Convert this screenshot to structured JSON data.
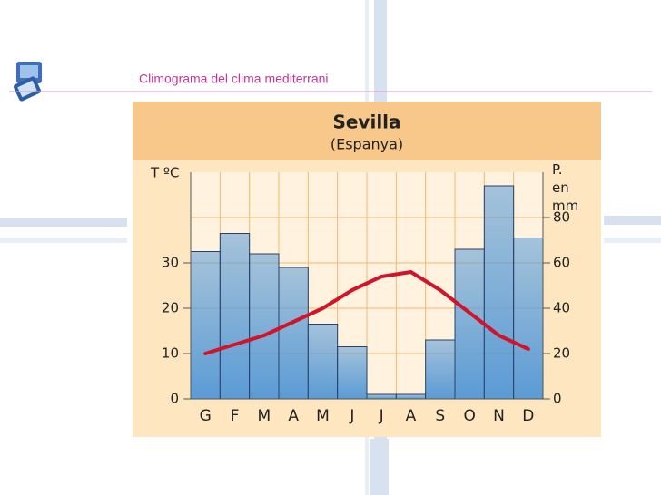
{
  "header": {
    "title": "Climograma del clima mediterrani"
  },
  "chart_data": {
    "type": "combo",
    "title": "Sevilla",
    "subtitle": "(Espanya)",
    "y_label": "T ºC",
    "y2_label": "P. en mm",
    "categories": [
      "G",
      "F",
      "M",
      "A",
      "M",
      "J",
      "J",
      "A",
      "S",
      "O",
      "N",
      "D"
    ],
    "series": [
      {
        "type": "bar",
        "axis": "y2",
        "color": "#5b9bd5",
        "values": [
          65,
          73,
          64,
          58,
          33,
          23,
          2,
          2,
          26,
          66,
          94,
          71
        ]
      },
      {
        "type": "line",
        "axis": "y",
        "color": "#d2142a",
        "values": [
          10,
          12,
          14,
          17,
          20,
          24,
          27,
          28,
          24,
          19,
          14,
          11
        ]
      }
    ],
    "ylim": [
      0,
      50
    ],
    "yticks": [
      0,
      10,
      20,
      30
    ],
    "y2lim": [
      0,
      100
    ],
    "y2ticks": [
      0,
      20,
      40,
      60,
      80
    ],
    "grid": true
  }
}
